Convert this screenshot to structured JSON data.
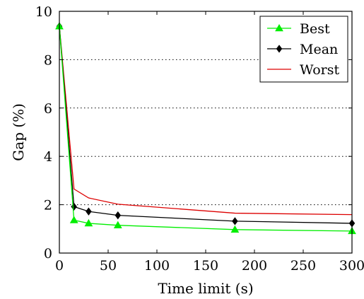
{
  "chart_data": {
    "type": "line",
    "title": "",
    "xlabel": "Time limit (s)",
    "ylabel": "Gap (%)",
    "xlim": [
      0,
      300
    ],
    "ylim": [
      0,
      10
    ],
    "x_ticks": [
      0,
      50,
      100,
      150,
      200,
      250,
      300
    ],
    "y_ticks": [
      0,
      2,
      4,
      6,
      8,
      10
    ],
    "grid": "horizontal dotted",
    "legend": "top-right",
    "series": [
      {
        "name": "Best",
        "color": "#00ee00",
        "marker": "triangle",
        "x": [
          0,
          15,
          30,
          60,
          180,
          300
        ],
        "y": [
          9.38,
          1.36,
          1.23,
          1.15,
          0.97,
          0.91
        ]
      },
      {
        "name": "Mean",
        "color": "#000000",
        "marker": "diamond",
        "x": [
          0,
          15,
          30,
          60,
          180,
          300
        ],
        "y": [
          9.38,
          1.92,
          1.72,
          1.56,
          1.32,
          1.23
        ]
      },
      {
        "name": "Worst",
        "color": "#dd0000",
        "marker": "none",
        "x": [
          0,
          15,
          30,
          60,
          180,
          300
        ],
        "y": [
          9.38,
          2.65,
          2.28,
          2.02,
          1.65,
          1.59
        ]
      }
    ]
  }
}
